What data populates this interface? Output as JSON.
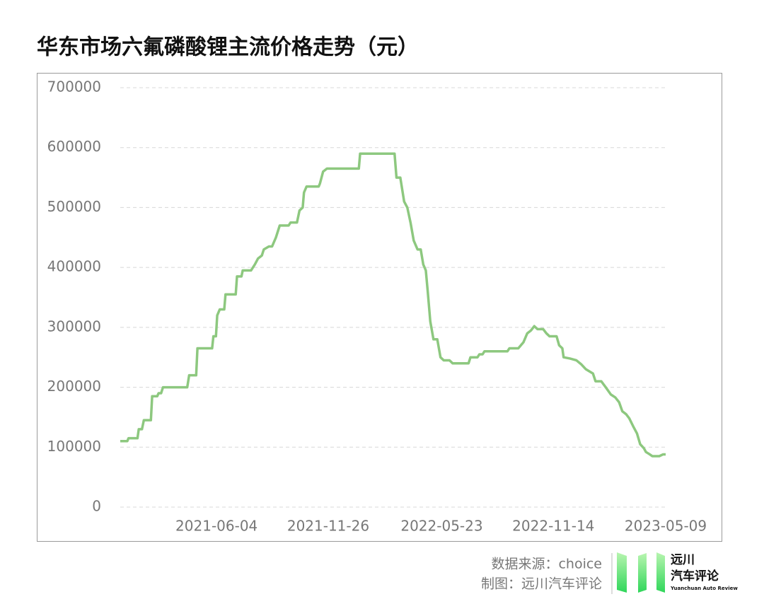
{
  "chart_data": {
    "type": "line",
    "title": "华东市场六氟磷酸锂主流价格走势（元）",
    "x": [
      "2021-01-04",
      "2021-01-15",
      "2021-01-17",
      "2021-01-31",
      "2021-02-02",
      "2021-02-07",
      "2021-02-10",
      "2021-02-21",
      "2021-02-23",
      "2021-03-03",
      "2021-03-05",
      "2021-03-09",
      "2021-03-12",
      "2021-04-19",
      "2021-04-22",
      "2021-05-03",
      "2021-05-05",
      "2021-05-28",
      "2021-05-30",
      "2021-06-03",
      "2021-06-05",
      "2021-06-09",
      "2021-06-16",
      "2021-06-18",
      "2021-07-04",
      "2021-07-06",
      "2021-07-13",
      "2021-07-15",
      "2021-07-28",
      "2021-08-03",
      "2021-08-08",
      "2021-08-14",
      "2021-08-17",
      "2021-08-25",
      "2021-08-30",
      "2021-09-05",
      "2021-09-11",
      "2021-09-25",
      "2021-09-28",
      "2021-10-08",
      "2021-10-12",
      "2021-10-17",
      "2021-10-19",
      "2021-10-23",
      "2021-11-11",
      "2021-11-13",
      "2021-11-18",
      "2021-11-24",
      "2022-01-13",
      "2022-01-15",
      "2022-03-10",
      "2022-03-13",
      "2022-03-19",
      "2022-03-25",
      "2022-03-30",
      "2022-04-04",
      "2022-04-09",
      "2022-04-15",
      "2022-04-20",
      "2022-04-24",
      "2022-04-28",
      "2022-05-01",
      "2022-05-05",
      "2022-05-10",
      "2022-05-16",
      "2022-05-21",
      "2022-05-26",
      "2022-06-04",
      "2022-06-09",
      "2022-07-04",
      "2022-07-07",
      "2022-07-18",
      "2022-07-21",
      "2022-07-26",
      "2022-07-29",
      "2022-09-03",
      "2022-09-06",
      "2022-09-20",
      "2022-09-28",
      "2022-10-04",
      "2022-10-10",
      "2022-10-15",
      "2022-10-20",
      "2022-10-29",
      "2022-11-03",
      "2022-11-08",
      "2022-11-19",
      "2022-11-23",
      "2022-11-28",
      "2022-11-30",
      "2022-12-10",
      "2022-12-20",
      "2022-12-28",
      "2023-01-04",
      "2023-01-15",
      "2023-01-19",
      "2023-01-28",
      "2023-02-04",
      "2023-02-12",
      "2023-02-19",
      "2023-02-25",
      "2023-03-02",
      "2023-03-08",
      "2023-03-13",
      "2023-03-19",
      "2023-03-25",
      "2023-03-30",
      "2023-04-05",
      "2023-04-08",
      "2023-04-14",
      "2023-04-18",
      "2023-04-29",
      "2023-05-05",
      "2023-05-09"
    ],
    "series": [
      {
        "color": "#8dc87f",
        "values": [
          110000,
          110000,
          115000,
          115000,
          130000,
          130000,
          145000,
          145000,
          185000,
          185000,
          190000,
          190000,
          200000,
          200000,
          220000,
          220000,
          265000,
          265000,
          285000,
          285000,
          320000,
          330000,
          330000,
          355000,
          355000,
          385000,
          385000,
          395000,
          395000,
          405000,
          415000,
          420000,
          430000,
          435000,
          435000,
          450000,
          470000,
          470000,
          475000,
          475000,
          495000,
          500000,
          525000,
          535000,
          535000,
          540000,
          560000,
          565000,
          565000,
          590000,
          590000,
          550000,
          550000,
          510000,
          500000,
          475000,
          445000,
          430000,
          430000,
          405000,
          395000,
          360000,
          310000,
          280000,
          280000,
          250000,
          245000,
          245000,
          240000,
          240000,
          250000,
          250000,
          255000,
          255000,
          260000,
          260000,
          265000,
          265000,
          275000,
          290000,
          295000,
          302000,
          297000,
          297000,
          290000,
          285000,
          285000,
          270000,
          265000,
          250000,
          248000,
          245000,
          238000,
          230000,
          223000,
          210000,
          210000,
          200000,
          188000,
          183000,
          175000,
          160000,
          155000,
          148000,
          135000,
          123000,
          105000,
          98000,
          92000,
          88000,
          85000,
          85000,
          88000,
          88000
        ]
      }
    ],
    "xlim": [
      "2021-01-04",
      "2023-05-09"
    ],
    "xticks": [
      "2021-06-04",
      "2021-11-26",
      "2022-05-23",
      "2022-11-14",
      "2023-05-09"
    ],
    "ylim": [
      0,
      700000
    ],
    "yticks": [
      0,
      100000,
      200000,
      300000,
      400000,
      500000,
      600000,
      700000
    ],
    "grid": true
  },
  "footer": {
    "source": "数据来源：choice",
    "credit": "制图：远川汽车评论",
    "logo_line1": "远川",
    "logo_line2": "汽车评论",
    "logo_line3": "Yuanchuan Auto Review"
  }
}
